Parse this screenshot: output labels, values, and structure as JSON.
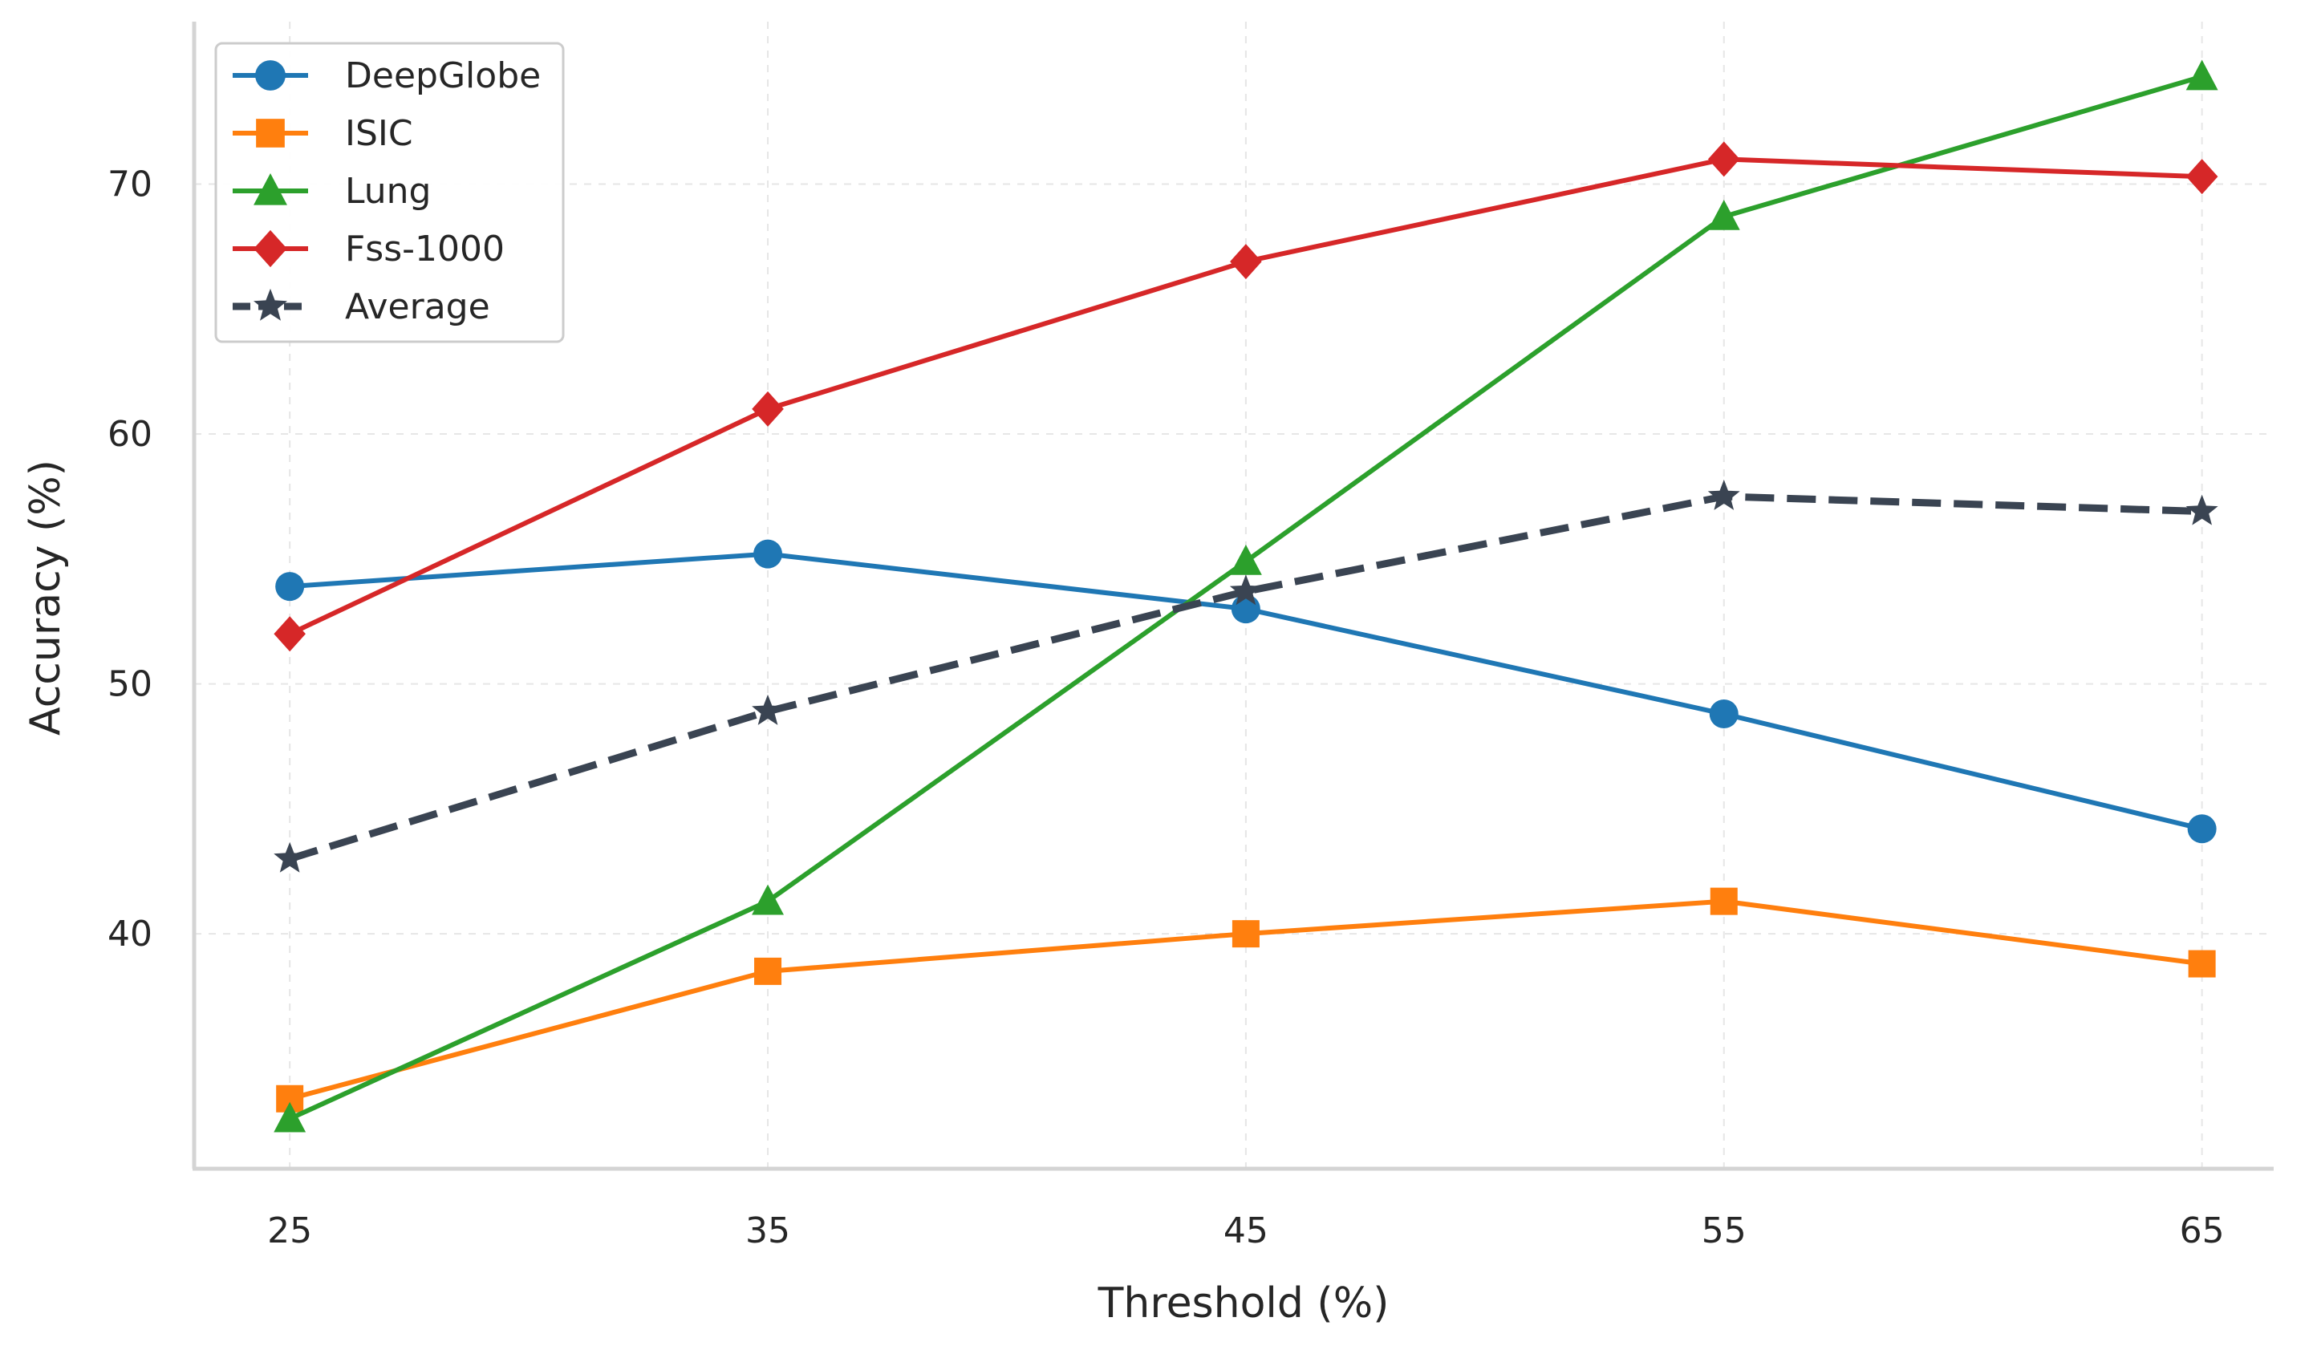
{
  "chart_data": {
    "type": "line",
    "title": "",
    "xlabel": "Threshold (%)",
    "ylabel": "Accuracy (%)",
    "x": [
      25,
      35,
      45,
      55,
      65
    ],
    "x_tick_labels": [
      "25",
      "35",
      "45",
      "55",
      "65"
    ],
    "y_ticks": [
      40,
      50,
      60,
      70
    ],
    "y_tick_labels": [
      "40",
      "50",
      "60",
      "70"
    ],
    "xlim": [
      23,
      66.5
    ],
    "ylim": [
      30.6,
      76.5
    ],
    "grid": true,
    "legend_position": "top-left",
    "series": [
      {
        "name": "DeepGlobe",
        "values": [
          53.9,
          55.2,
          53.0,
          48.8,
          44.2
        ],
        "color": "#1f77b4",
        "marker": "circle",
        "dashed": false
      },
      {
        "name": "ISIC",
        "values": [
          33.4,
          38.5,
          40.0,
          41.3,
          38.8
        ],
        "color": "#ff7f0e",
        "marker": "square",
        "dashed": false
      },
      {
        "name": "Lung",
        "values": [
          32.6,
          41.3,
          54.9,
          68.7,
          74.3
        ],
        "color": "#2ca02c",
        "marker": "triangle",
        "dashed": false
      },
      {
        "name": "Fss-1000",
        "values": [
          52.0,
          61.0,
          66.9,
          71.0,
          70.3
        ],
        "color": "#d62728",
        "marker": "diamond",
        "dashed": false
      },
      {
        "name": "Average",
        "values": [
          43.0,
          48.9,
          53.7,
          57.5,
          56.9
        ],
        "color": "#3a4452",
        "marker": "star",
        "dashed": true
      }
    ]
  }
}
